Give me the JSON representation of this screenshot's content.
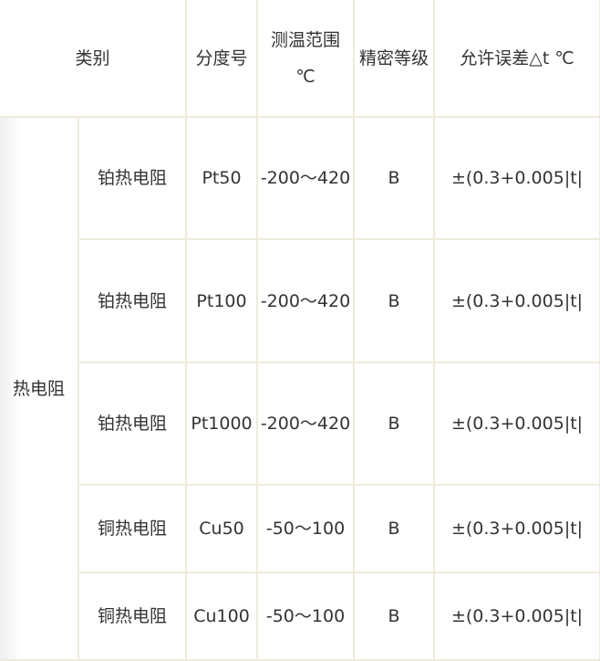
{
  "header": {
    "category": "类别",
    "grade": "分度号",
    "range": "测温范围 ℃",
    "accuracy": "精密等级",
    "tolerance": "允许误差△t ℃"
  },
  "category_group": "热电阻",
  "rows": [
    {
      "type": "铂热电阻",
      "grade": "Pt50",
      "range": "-200～420",
      "accuracy": "B",
      "tolerance": "±(0.3+0.005|t|"
    },
    {
      "type": "铂热电阻",
      "grade": "Pt100",
      "range": "-200～420",
      "accuracy": "B",
      "tolerance": "±(0.3+0.005|t|"
    },
    {
      "type": "铂热电阻",
      "grade": "Pt1000",
      "range": "-200～420",
      "accuracy": "B",
      "tolerance": "±(0.3+0.005|t|"
    },
    {
      "type": "铜热电阻",
      "grade": "Cu50",
      "range": "-50～100",
      "accuracy": "B",
      "tolerance": "±(0.3+0.005|t|"
    },
    {
      "type": "铜热电阻",
      "grade": "Cu100",
      "range": "-50～100",
      "accuracy": "B",
      "tolerance": "±(0.3+0.005|t|"
    }
  ]
}
